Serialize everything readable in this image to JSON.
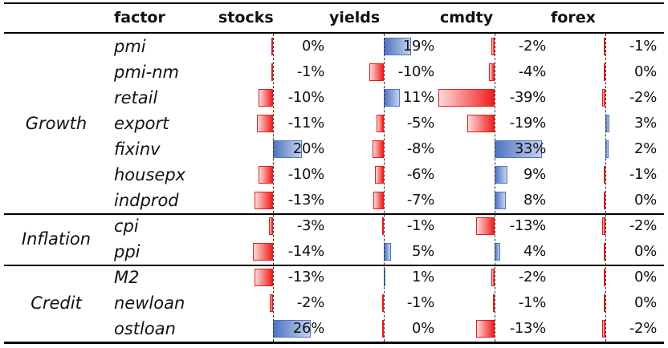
{
  "headers": [
    "factor",
    "stocks",
    "yields",
    "cmdty",
    "forex"
  ],
  "columns": [
    "stocks",
    "yields",
    "cmdty",
    "forex"
  ],
  "groups": [
    {
      "name": "Growth",
      "rows": [
        {
          "factor": "pmi",
          "values": [
            0,
            19,
            -2,
            -1
          ],
          "labels": [
            "0%",
            "19%",
            "-2%",
            "-1%"
          ]
        },
        {
          "factor": "pmi-nm",
          "values": [
            -1,
            -10,
            -4,
            0
          ],
          "labels": [
            "-1%",
            "-10%",
            "-4%",
            "0%"
          ]
        },
        {
          "factor": "retail",
          "values": [
            -10,
            11,
            -39,
            -2
          ],
          "labels": [
            "-10%",
            "11%",
            "-39%",
            "-2%"
          ]
        },
        {
          "factor": "export",
          "values": [
            -11,
            -5,
            -19,
            3
          ],
          "labels": [
            "-11%",
            "-5%",
            "-19%",
            "3%"
          ]
        },
        {
          "factor": "fixinv",
          "values": [
            20,
            -8,
            33,
            2
          ],
          "labels": [
            "20%",
            "-8%",
            "33%",
            "2%"
          ]
        },
        {
          "factor": "housepx",
          "values": [
            -10,
            -6,
            9,
            -1
          ],
          "labels": [
            "-10%",
            "-6%",
            "9%",
            "-1%"
          ]
        },
        {
          "factor": "indprod",
          "values": [
            -13,
            -7,
            8,
            0
          ],
          "labels": [
            "-13%",
            "-7%",
            "8%",
            "0%"
          ]
        }
      ]
    },
    {
      "name": "Inflation",
      "rows": [
        {
          "factor": "cpi",
          "values": [
            -3,
            -1,
            -13,
            -2
          ],
          "labels": [
            "-3%",
            "-1%",
            "-13%",
            "-2%"
          ]
        },
        {
          "factor": "ppi",
          "values": [
            -14,
            5,
            4,
            0
          ],
          "labels": [
            "-14%",
            "5%",
            "4%",
            "0%"
          ]
        }
      ]
    },
    {
      "name": "Credit",
      "rows": [
        {
          "factor": "M2",
          "values": [
            -13,
            1,
            -2,
            0
          ],
          "labels": [
            "-13%",
            "1%",
            "-2%",
            "0%"
          ]
        },
        {
          "factor": "newloan",
          "values": [
            -2,
            -1,
            -1,
            0
          ],
          "labels": [
            "-2%",
            "-1%",
            "-1%",
            "0%"
          ]
        },
        {
          "factor": "ostloan",
          "values": [
            26,
            0,
            -13,
            -2
          ],
          "labels": [
            "26%",
            "0%",
            "-13%",
            "-2%"
          ]
        }
      ]
    }
  ],
  "colors": {
    "positive": "#4d74c2",
    "negative": "#f21d1d",
    "rule": "#000000"
  }
}
